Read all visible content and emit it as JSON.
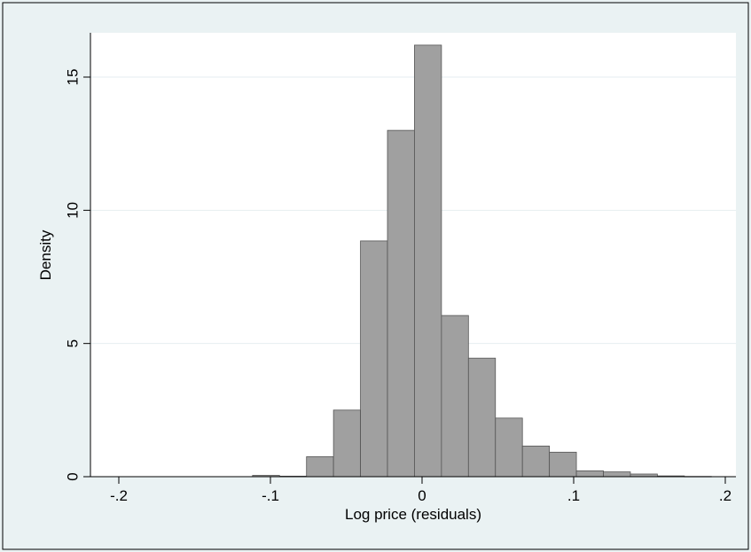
{
  "chart_data": {
    "type": "bar",
    "title": "",
    "xlabel": "Log price (residuals)",
    "ylabel": "Density",
    "xlim": [
      -0.205,
      0.205
    ],
    "ylim": [
      0,
      16.5
    ],
    "x_ticks": [
      {
        "value": -0.2,
        "label": "-.2"
      },
      {
        "value": -0.1,
        "label": "-.1"
      },
      {
        "value": 0,
        "label": "0"
      },
      {
        "value": 0.1,
        "label": ".1"
      },
      {
        "value": 0.2,
        "label": ".2"
      }
    ],
    "y_ticks": [
      {
        "value": 0,
        "label": "0"
      },
      {
        "value": 5,
        "label": "5"
      },
      {
        "value": 10,
        "label": "10"
      },
      {
        "value": 15,
        "label": "15"
      }
    ],
    "grid": "horizontal",
    "bin_width": 0.0178,
    "bins": [
      {
        "x0": -0.1118,
        "x1": -0.094,
        "density": 0.05
      },
      {
        "x0": -0.094,
        "x1": -0.0762,
        "density": 0.02
      },
      {
        "x0": -0.0762,
        "x1": -0.0584,
        "density": 0.75
      },
      {
        "x0": -0.0584,
        "x1": -0.0406,
        "density": 2.5
      },
      {
        "x0": -0.0406,
        "x1": -0.0228,
        "density": 8.85
      },
      {
        "x0": -0.0228,
        "x1": -0.005,
        "density": 13.0
      },
      {
        "x0": -0.005,
        "x1": 0.0128,
        "density": 16.2
      },
      {
        "x0": 0.0128,
        "x1": 0.0306,
        "density": 6.05
      },
      {
        "x0": 0.0306,
        "x1": 0.0484,
        "density": 4.45
      },
      {
        "x0": 0.0484,
        "x1": 0.0662,
        "density": 2.2
      },
      {
        "x0": 0.0662,
        "x1": 0.084,
        "density": 1.15
      },
      {
        "x0": 0.084,
        "x1": 0.1018,
        "density": 0.92
      },
      {
        "x0": 0.1018,
        "x1": 0.1196,
        "density": 0.22
      },
      {
        "x0": 0.1196,
        "x1": 0.1374,
        "density": 0.18
      },
      {
        "x0": 0.1374,
        "x1": 0.1552,
        "density": 0.1
      },
      {
        "x0": 0.1552,
        "x1": 0.173,
        "density": 0.03
      },
      {
        "x0": 0.173,
        "x1": 0.1908,
        "density": 0.01
      }
    ],
    "colors": {
      "bar_fill": "#a0a0a0",
      "bar_stroke": "#555555",
      "plot_background": "#ffffff",
      "outer_background": "#eaf2f3",
      "grid": "#e6eef0"
    }
  }
}
